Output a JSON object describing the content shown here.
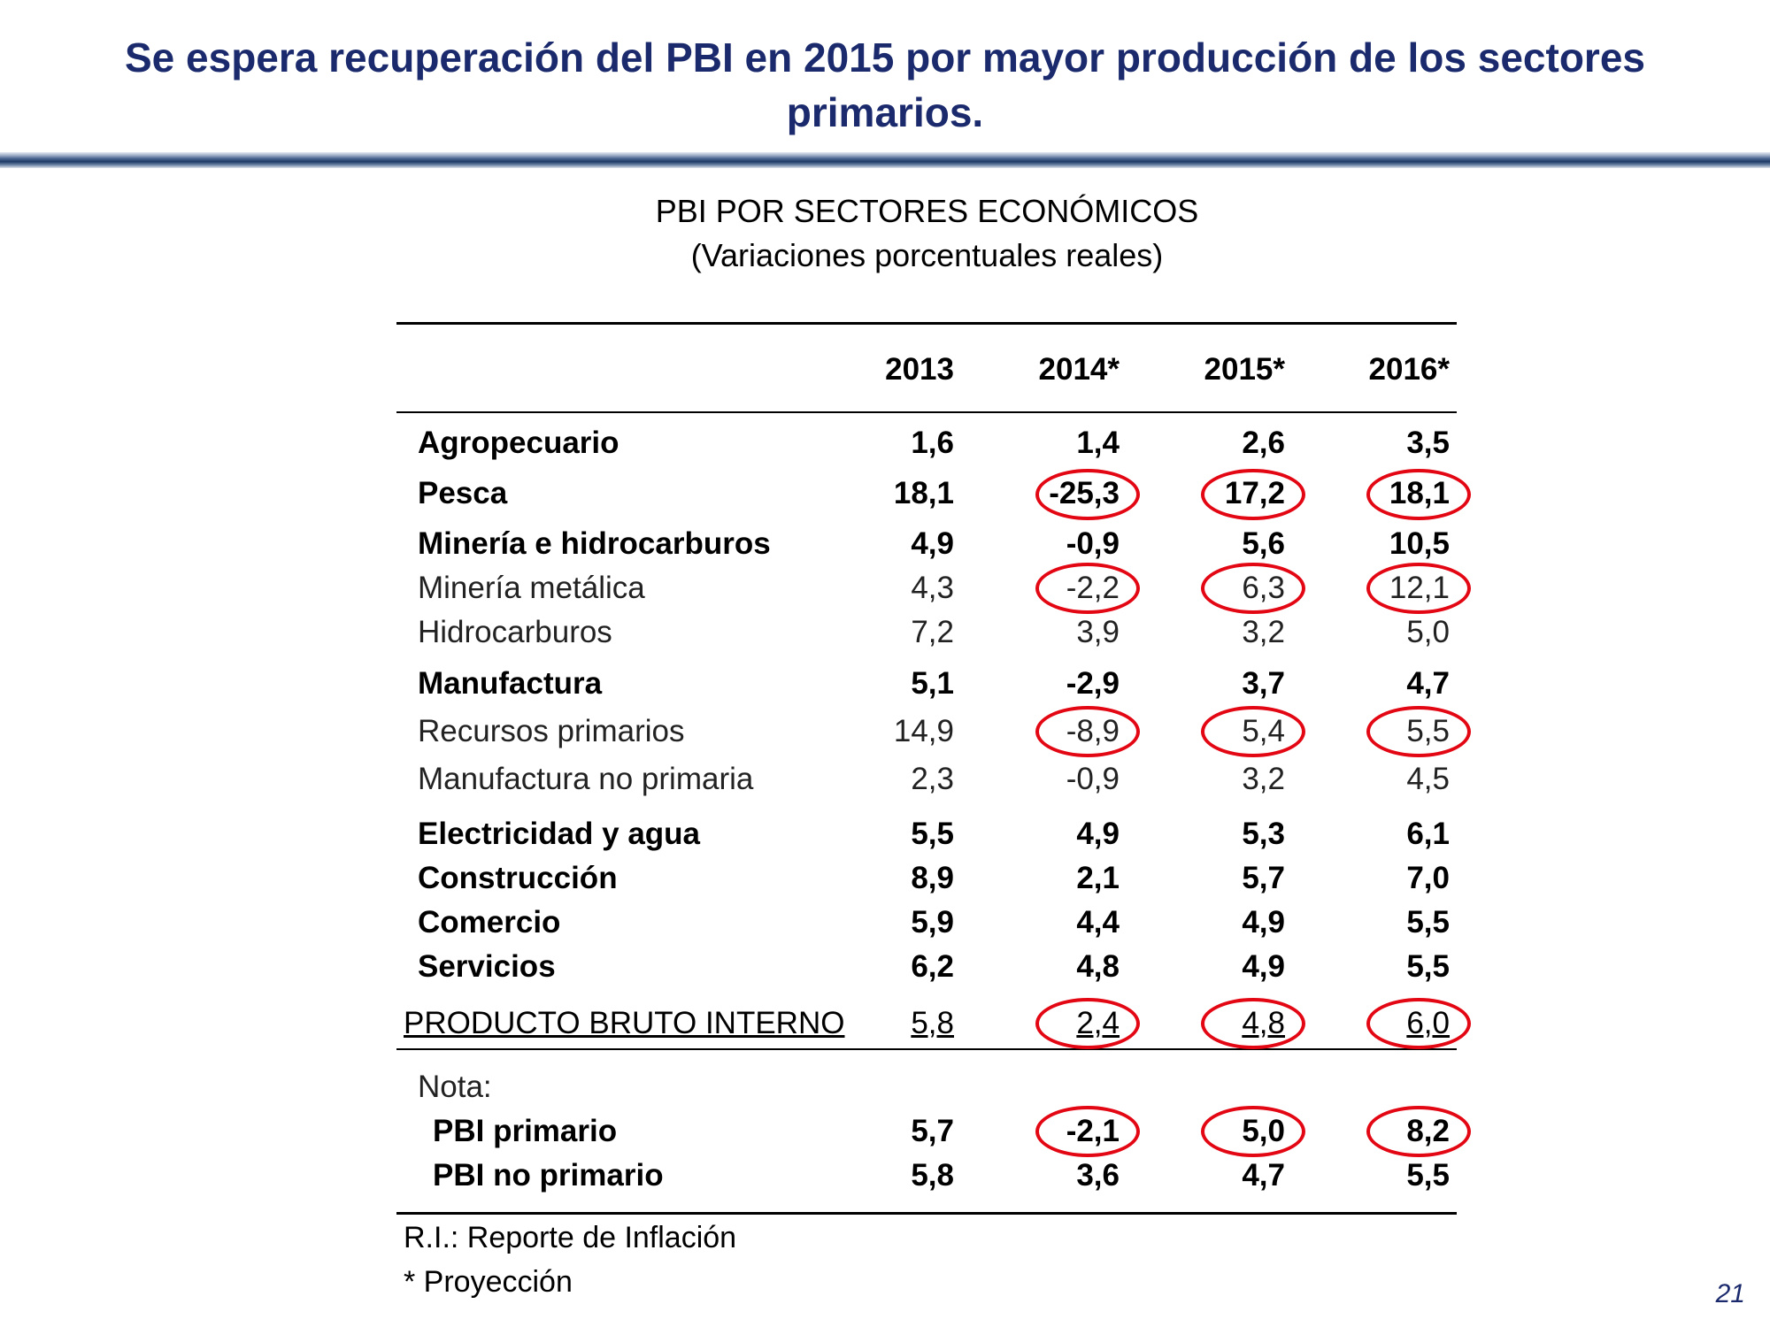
{
  "title_line1": "Se espera recuperación del PBI en 2015 por mayor producción de los sectores",
  "title_line2": "primarios.",
  "table_title": "PBI POR SECTORES ECONÓMICOS",
  "table_subtitle": "(Variaciones porcentuales reales)",
  "columns": [
    "2013",
    "2014*",
    "2015*",
    "2016*"
  ],
  "rows": [
    {
      "label": "Agropecuario",
      "values": [
        "1,6",
        "1,4",
        "2,6",
        "3,5"
      ]
    },
    {
      "label": "Pesca",
      "values": [
        "18,1",
        "-25,3",
        "17,2",
        "18,1"
      ]
    },
    {
      "label": "Minería e hidrocarburos",
      "values": [
        "4,9",
        "-0,9",
        "5,6",
        "10,5"
      ]
    },
    {
      "label": "Minería metálica",
      "values": [
        "4,3",
        "-2,2",
        "6,3",
        "12,1"
      ]
    },
    {
      "label": "Hidrocarburos",
      "values": [
        "7,2",
        "3,9",
        "3,2",
        "5,0"
      ]
    },
    {
      "label": "Manufactura",
      "values": [
        "5,1",
        "-2,9",
        "3,7",
        "4,7"
      ]
    },
    {
      "label": "Recursos primarios",
      "values": [
        "14,9",
        "-8,9",
        "5,4",
        "5,5"
      ]
    },
    {
      "label": "Manufactura no primaria",
      "values": [
        "2,3",
        "-0,9",
        "3,2",
        "4,5"
      ]
    },
    {
      "label": "Electricidad y agua",
      "values": [
        "5,5",
        "4,9",
        "5,3",
        "6,1"
      ]
    },
    {
      "label": "Construcción",
      "values": [
        "8,9",
        "2,1",
        "5,7",
        "7,0"
      ]
    },
    {
      "label": "Comercio",
      "values": [
        "5,9",
        "4,4",
        "4,9",
        "5,5"
      ]
    },
    {
      "label": "Servicios",
      "values": [
        "6,2",
        "4,8",
        "4,9",
        "5,5"
      ]
    },
    {
      "label": "PRODUCTO BRUTO INTERNO",
      "values": [
        "5,8",
        "2,4",
        "4,8",
        "6,0"
      ]
    }
  ],
  "nota": {
    "label": "Nota:",
    "rows": [
      {
        "label": "PBI primario",
        "values": [
          "5,7",
          "-2,1",
          "5,0",
          "8,2"
        ]
      },
      {
        "label": "PBI no primario",
        "values": [
          "5,8",
          "3,6",
          "4,7",
          "5,5"
        ]
      }
    ]
  },
  "footnotes": [
    "R.I.: Reporte de Inflación",
    "* Proyección"
  ],
  "page_number": "21",
  "colors": {
    "title": "#1a2a6c",
    "highlight_circle": "#e30613"
  }
}
